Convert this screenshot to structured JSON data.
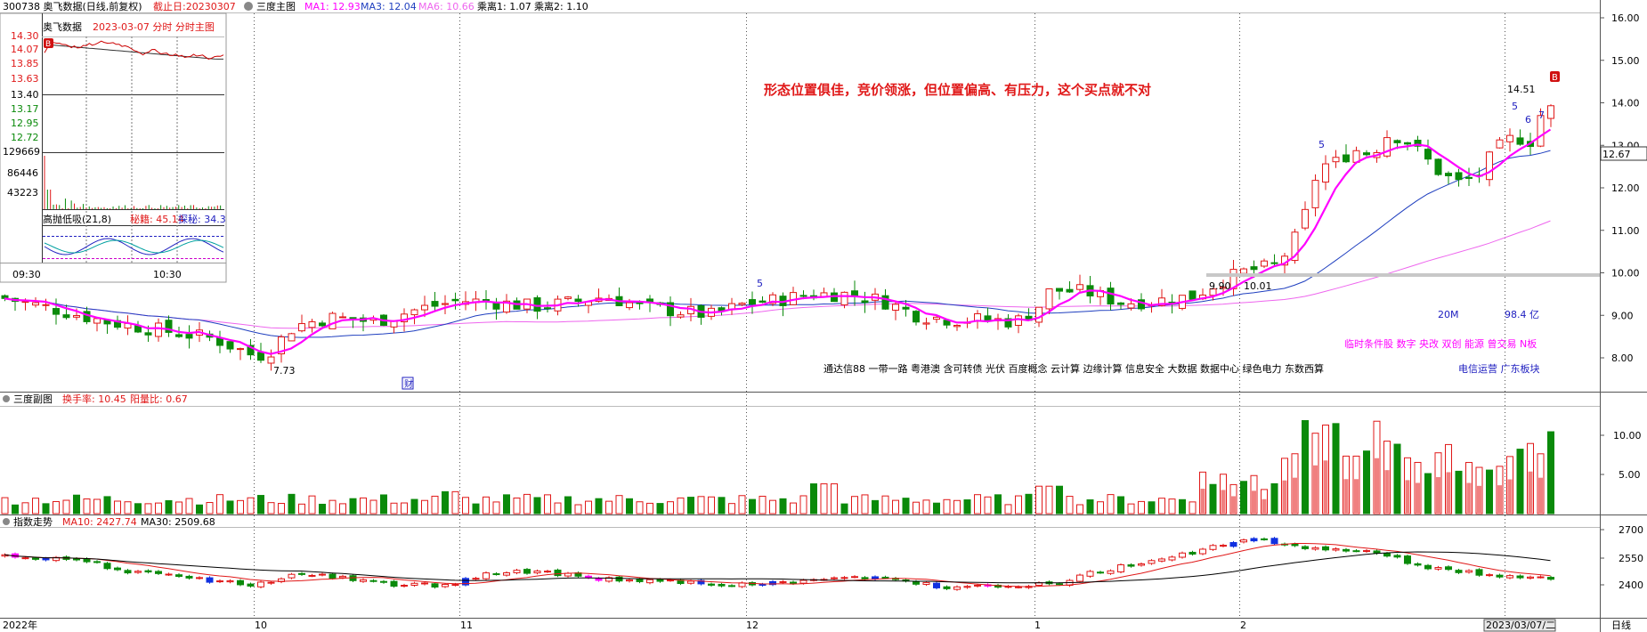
{
  "header": {
    "code_name": "300738 奥飞数据(日线,前复权)",
    "cutoff": "截止日:20230307",
    "main_label": "三度主图",
    "ma1": "MA1: 12.93",
    "ma3": "MA3: 12.04",
    "ma6": "MA6: 10.66",
    "ratio1": "乘离1: 1.07",
    "ratio2": "乘离2: 1.10"
  },
  "annotation": "形态位置俱佳，竞价领涨，但位置偏高、有压力，这个买点就不对",
  "inset": {
    "title": "奥飞数据",
    "date_label": "2023-03-07 分时 分时主图",
    "price_labels": [
      "14.30",
      "14.07",
      "13.85",
      "13.63",
      "13.40",
      "13.17",
      "12.95",
      "12.72"
    ],
    "volume_labels": [
      "129669",
      "86446",
      "43223"
    ],
    "indicator_label": "高抛低吸(21,8)",
    "secret_label": "秘籍: 45.14",
    "probe_label": "探秘: 34.3",
    "time_labels": [
      "09:30",
      "10:30"
    ],
    "b_marker": "B",
    "colors": {
      "price": "#cc0000",
      "avg": "#333333"
    }
  },
  "price_axis": [
    "16.00",
    "15.00",
    "14.00",
    "13.00",
    "12.00",
    "11.00",
    "10.00",
    "9.00",
    "8.00"
  ],
  "current_price_tag": "12.67",
  "price_annotations": {
    "low": "7.73",
    "level_a": "9.90",
    "level_b": "10.01",
    "high": "14.51",
    "count5a": "5",
    "count5b": "5",
    "count5c": "5",
    "count6": "6",
    "count7": "7",
    "b_marker": "B",
    "cai": "财",
    "vol_label": "20M",
    "cap_label": "98.4 亿"
  },
  "concepts_line": "通达信88 一带一路 粤港澳 含可转债 光伏 百度概念 云计算 边缘计算 信息安全 大数据 数据中心 绿色电力 东数西算",
  "board_tags": "临时条件股 数字 央改 双创 能源 曾交易 N板",
  "industry_tags": "电信运营   广东板块",
  "sub1": {
    "label": "三度副图",
    "turnover": "换手率: 10.45",
    "yang_ratio": "阳量比: 0.67",
    "axis": [
      "10.00",
      "5.00"
    ]
  },
  "sub2": {
    "label": "指数走势",
    "ma10": "MA10: 2427.74",
    "ma30": "MA30: 2509.68",
    "axis": [
      "2700",
      "2550",
      "2400"
    ]
  },
  "x_axis": {
    "labels": [
      "2022年",
      "10",
      "11",
      "12",
      "1",
      "2",
      "2023/03/07/二"
    ],
    "period": "日线"
  },
  "colors": {
    "up": "#e01818",
    "down": "#0a8a0a",
    "ma1": "#ff00ff",
    "ma3": "#1f3fbf",
    "ma6": "#ee66ee",
    "text_blue": "#2020c0",
    "annotation": "#e01818"
  },
  "chart_data": [
    {
      "type": "candlestick",
      "title": "三度主图",
      "ylim": [
        7.5,
        16.3
      ],
      "overlays": [
        "MA1",
        "MA3",
        "MA6"
      ],
      "last_values": {
        "MA1": 12.93,
        "MA3": 12.04,
        "MA6": 10.66
      },
      "notable": {
        "low": 7.73,
        "high": 14.51,
        "levels": [
          9.9,
          10.01
        ],
        "last_price": 12.67
      }
    },
    {
      "type": "bar",
      "title": "三度副图",
      "ylim": [
        0,
        12
      ],
      "series": [
        {
          "name": "换手率",
          "last": 10.45
        }
      ]
    },
    {
      "type": "candlestick",
      "title": "指数走势",
      "ylim": [
        2300,
        2740
      ],
      "series": [
        {
          "name": "MA10",
          "last": 2427.74
        },
        {
          "name": "MA30",
          "last": 2509.68
        }
      ]
    }
  ]
}
